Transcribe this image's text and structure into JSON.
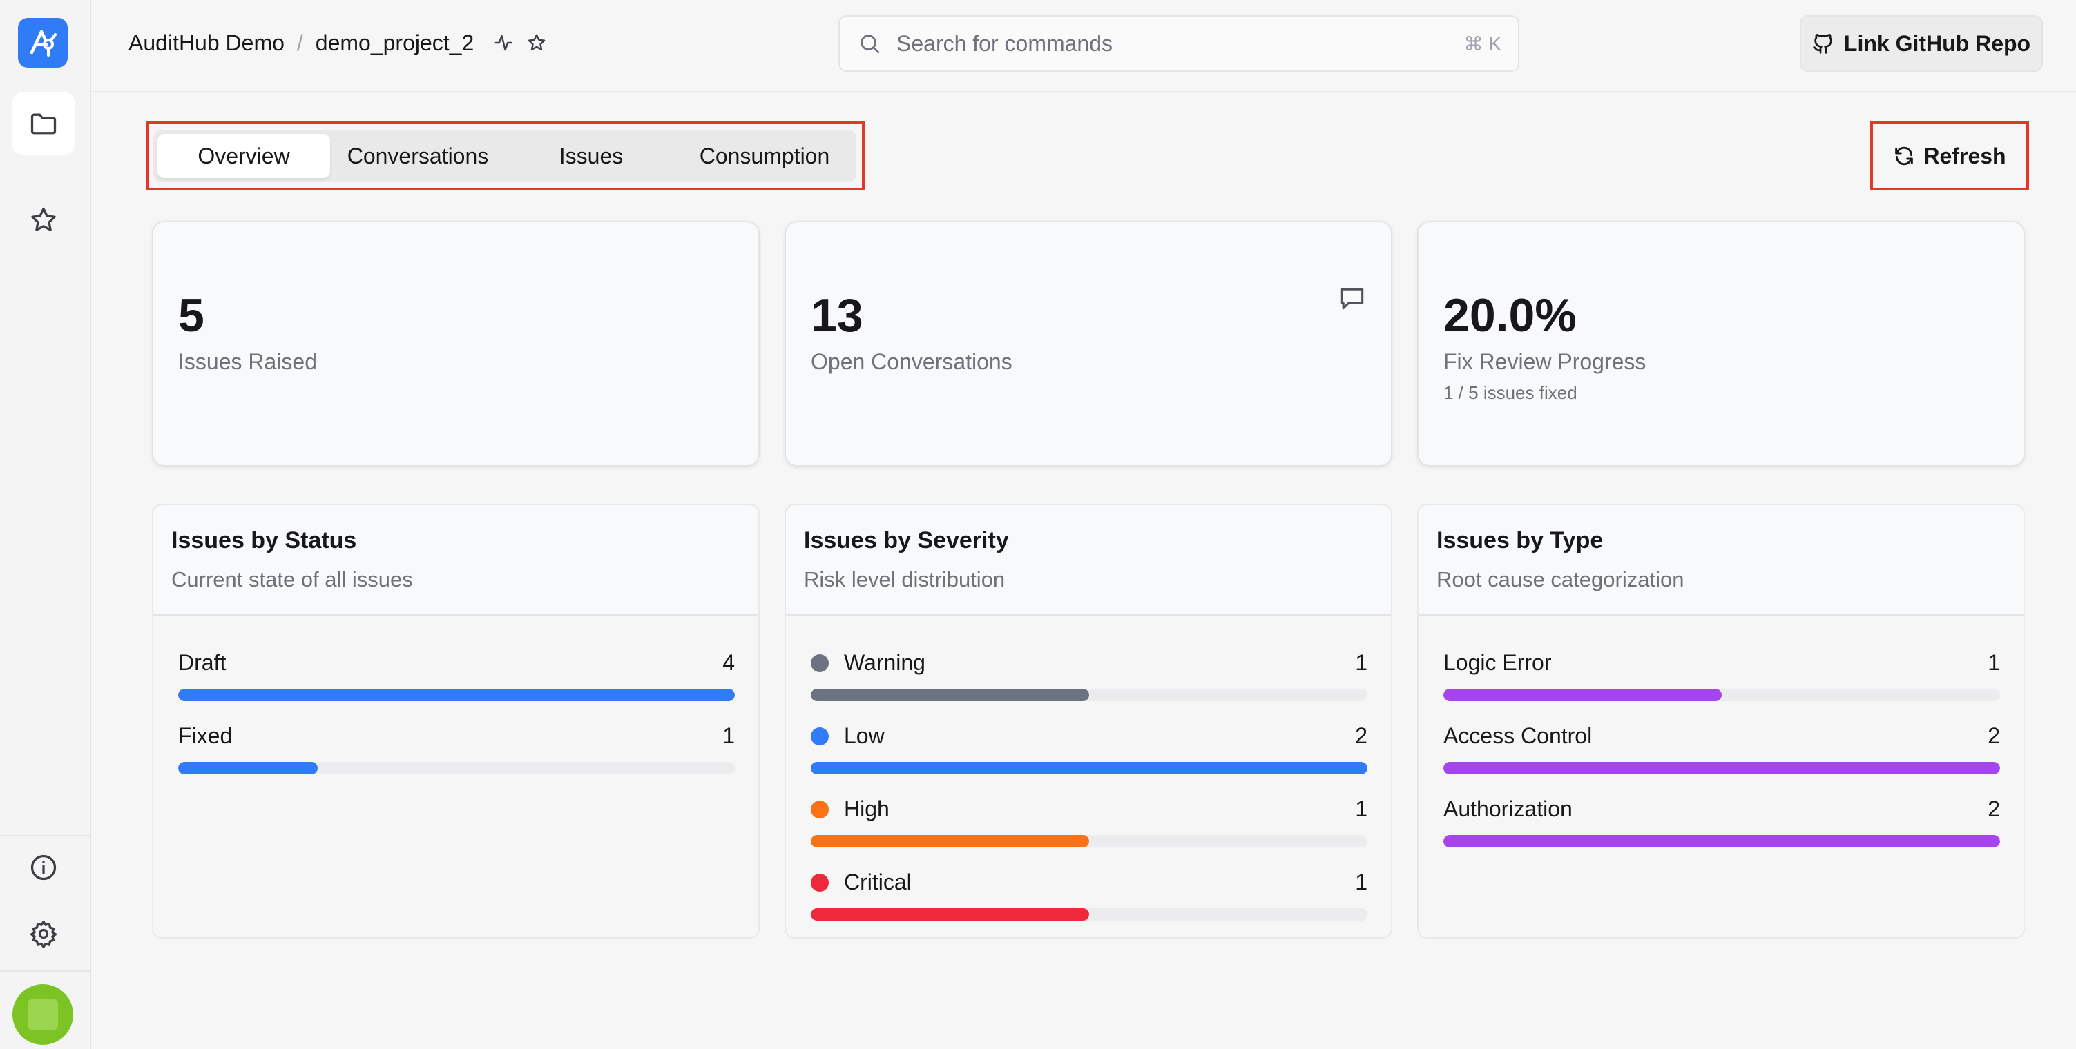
{
  "breadcrumb": {
    "org": "AuditHub Demo",
    "separator": "/",
    "project": "demo_project_2"
  },
  "search": {
    "placeholder": "Search for commands",
    "shortcut": "⌘ K"
  },
  "header": {
    "github_button": "Link GitHub Repo"
  },
  "tabs": [
    {
      "label": "Overview",
      "active": true
    },
    {
      "label": "Conversations",
      "active": false
    },
    {
      "label": "Issues",
      "active": false
    },
    {
      "label": "Consumption",
      "active": false
    }
  ],
  "refresh_label": "Refresh",
  "stats": {
    "issues": {
      "value": "5",
      "label": "Issues Raised"
    },
    "conversations": {
      "value": "13",
      "label": "Open Conversations"
    },
    "progress": {
      "value": "20.0%",
      "label": "Fix Review Progress",
      "sub": "1 / 5 issues fixed"
    }
  },
  "status_panel": {
    "title": "Issues by Status",
    "subtitle": "Current state of all issues",
    "rows": [
      {
        "label": "Draft",
        "count": "4",
        "fraction": 1.0,
        "color": "#2f7cf6"
      },
      {
        "label": "Fixed",
        "count": "1",
        "fraction": 0.25,
        "color": "#2f7cf6"
      }
    ]
  },
  "severity_panel": {
    "title": "Issues by Severity",
    "subtitle": "Risk level distribution",
    "rows": [
      {
        "label": "Warning",
        "count": "1",
        "fraction": 0.5,
        "color": "#6b7280"
      },
      {
        "label": "Low",
        "count": "2",
        "fraction": 1.0,
        "color": "#2f7cf6"
      },
      {
        "label": "High",
        "count": "1",
        "fraction": 0.5,
        "color": "#f97316"
      },
      {
        "label": "Critical",
        "count": "1",
        "fraction": 0.5,
        "color": "#f0283c"
      }
    ]
  },
  "type_panel": {
    "title": "Issues by Type",
    "subtitle": "Root cause categorization",
    "rows": [
      {
        "label": "Logic Error",
        "count": "1",
        "fraction": 0.5,
        "color": "#a445ed"
      },
      {
        "label": "Access Control",
        "count": "2",
        "fraction": 1.0,
        "color": "#a445ed"
      },
      {
        "label": "Authorization",
        "count": "2",
        "fraction": 1.0,
        "color": "#a445ed"
      }
    ]
  },
  "icons": {
    "logo": "audithub-logo-icon",
    "projects": "folder-icon",
    "favorites": "star-icon",
    "info": "info-icon",
    "settings": "gear-icon"
  }
}
